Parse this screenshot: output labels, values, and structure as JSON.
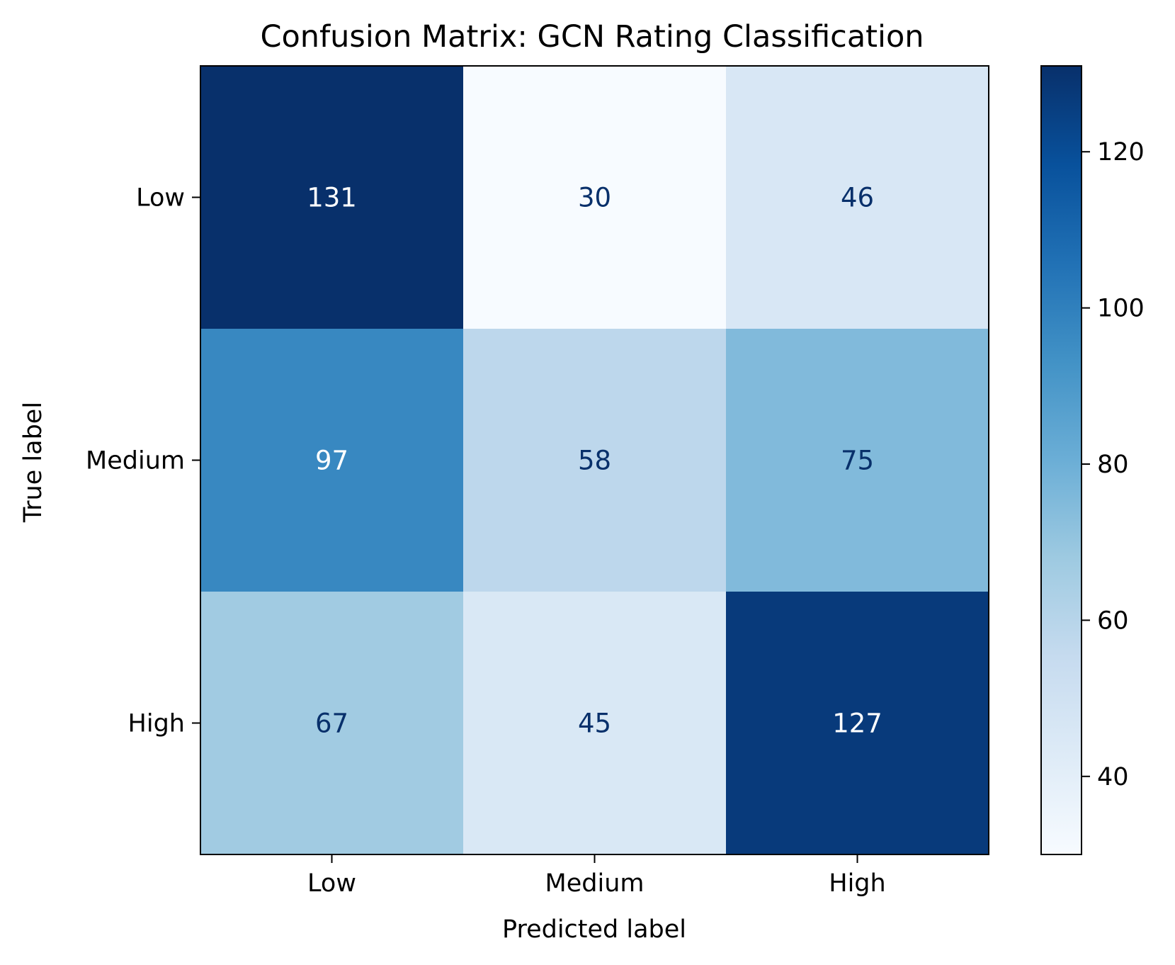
{
  "chart_data": {
    "type": "heatmap",
    "title": "Confusion Matrix: GCN Rating Classification",
    "xlabel": "Predicted label",
    "ylabel": "True label",
    "x_categories": [
      "Low",
      "Medium",
      "High"
    ],
    "y_categories": [
      "Low",
      "Medium",
      "High"
    ],
    "values": [
      [
        131,
        30,
        46
      ],
      [
        97,
        58,
        75
      ],
      [
        67,
        45,
        127
      ]
    ],
    "colormap": "Blues",
    "vmin": 30,
    "vmax": 131,
    "colorbar": {
      "ticks": [
        40,
        60,
        80,
        100,
        120
      ],
      "tick_labels": [
        "40",
        "60",
        "80",
        "100",
        "120"
      ]
    },
    "grid": false
  }
}
